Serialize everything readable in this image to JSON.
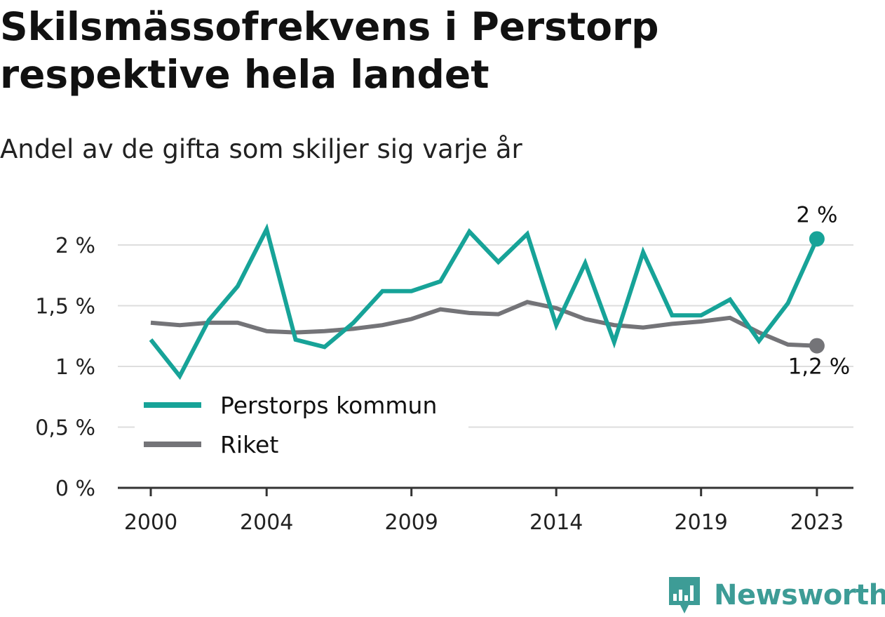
{
  "title": "Skilsmässofrekvens i Perstorp respektive hela landet",
  "subtitle": "Andel av de gifta som skiljer sig varje år",
  "brand": "Newsworthy",
  "colors": {
    "perstorp": "#17a398",
    "riket": "#747478",
    "grid": "#dedede",
    "axis": "#333333"
  },
  "chart_data": {
    "type": "line",
    "x": [
      2000,
      2001,
      2002,
      2003,
      2004,
      2005,
      2006,
      2007,
      2008,
      2009,
      2010,
      2011,
      2012,
      2013,
      2014,
      2015,
      2016,
      2017,
      2018,
      2019,
      2020,
      2021,
      2022,
      2023
    ],
    "xticks": [
      "2000",
      "2004",
      "2009",
      "2014",
      "2019",
      "2023"
    ],
    "yticks": [
      "0 %",
      "0,5 %",
      "1 %",
      "1,5 %",
      "2 %"
    ],
    "ylim": [
      0,
      2.25
    ],
    "grid": true,
    "legend_position": "bottom-left",
    "series": [
      {
        "name": "Perstorps kommun",
        "color": "#17a398",
        "end_label": "2 %",
        "values": [
          1.22,
          0.92,
          1.38,
          1.66,
          2.13,
          1.22,
          1.16,
          1.36,
          1.62,
          1.62,
          1.7,
          2.11,
          1.86,
          2.09,
          1.34,
          1.85,
          1.2,
          1.94,
          1.42,
          1.42,
          1.55,
          1.21,
          1.52,
          2.05
        ]
      },
      {
        "name": "Riket",
        "color": "#747478",
        "end_label": "1,2 %",
        "values": [
          1.36,
          1.34,
          1.36,
          1.36,
          1.29,
          1.28,
          1.29,
          1.31,
          1.34,
          1.39,
          1.47,
          1.44,
          1.43,
          1.53,
          1.48,
          1.39,
          1.34,
          1.32,
          1.35,
          1.37,
          1.4,
          1.28,
          1.18,
          1.17
        ]
      }
    ]
  }
}
